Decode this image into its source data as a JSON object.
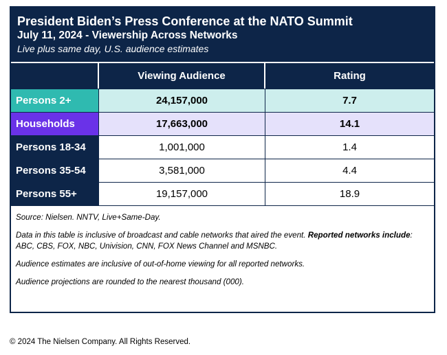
{
  "header": {
    "title": "President Biden’s Press Conference at the NATO Summit",
    "date_line": "July 11, 2024 - Viewership Across Networks",
    "subtitle": "Live plus same day, U.S. audience estimates"
  },
  "table": {
    "columns": [
      "",
      "Viewing Audience",
      "Rating"
    ],
    "rows": [
      {
        "label": "Persons 2+",
        "audience": "24,157,000",
        "rating": "7.7"
      },
      {
        "label": "Households",
        "audience": "17,663,000",
        "rating": "14.1"
      },
      {
        "label": "Persons 18-34",
        "audience": "1,001,000",
        "rating": "1.4"
      },
      {
        "label": "Persons 35-54",
        "audience": "3,581,000",
        "rating": "4.4"
      },
      {
        "label": "Persons 55+",
        "audience": "19,157,000",
        "rating": "18.9"
      }
    ]
  },
  "notes": {
    "source": "Source: Nielsen. NNTV, Live+Same-Day.",
    "inclusive_prefix": "Data in this table is inclusive of broadcast and cable networks that aired the event. ",
    "inclusive_bold": "Reported networks include",
    "inclusive_suffix": ": ABC, CBS, FOX, NBC, Univision, CNN, FOX News Channel and MSNBC.",
    "out_of_home": "Audience estimates are inclusive of out-of-home viewing for all reported networks.",
    "rounding": "Audience projections are rounded to the nearest thousand (000)."
  },
  "copyright": "© 2024 The Nielsen Company. All Rights Reserved.",
  "colors": {
    "navy": "#0d2548",
    "teal": "#2fbab0",
    "teal_light": "#cdeeed",
    "purple": "#6a32e8",
    "purple_light": "#e5e1fb"
  }
}
